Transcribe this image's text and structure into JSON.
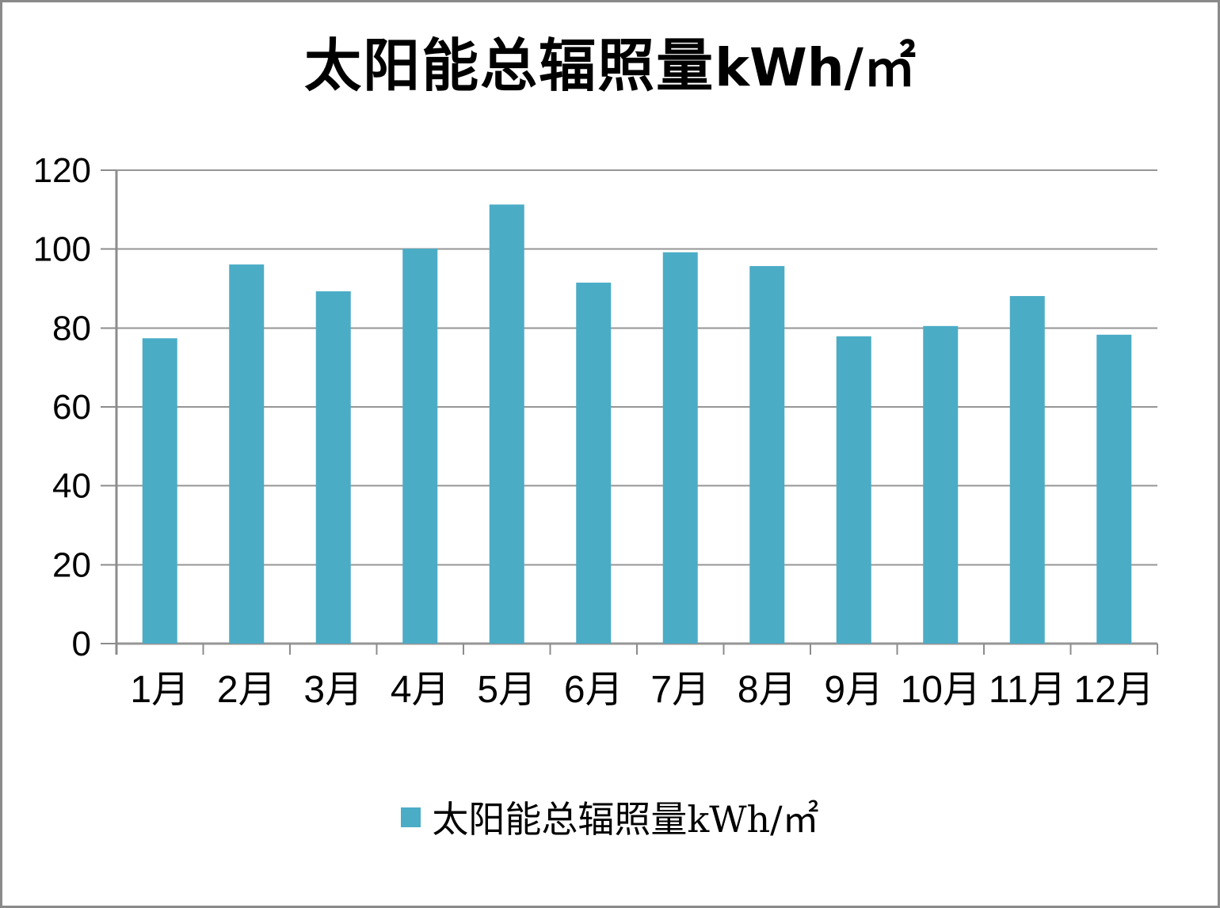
{
  "frame": {
    "background_color": "#ffffff",
    "border_color": "#8a8a8a"
  },
  "title": {
    "cn": "太阳能总辐照量",
    "unit": "kWh/㎡",
    "full": "太阳能总辐照量kWh/㎡"
  },
  "legend": {
    "label": "太阳能总辐照量kWh/㎡",
    "swatch_color": "#4BACC6",
    "position": "bottom-center"
  },
  "chart_data": {
    "type": "bar",
    "title": "太阳能总辐照量kWh/㎡",
    "categories": [
      "1月",
      "2月",
      "3月",
      "4月",
      "5月",
      "6月",
      "7月",
      "8月",
      "9月",
      "10月",
      "11月",
      "12月"
    ],
    "series": [
      {
        "name": "太阳能总辐照量kWh/㎡",
        "values": [
          77.4,
          96.1,
          89.3,
          100.1,
          111.3,
          91.5,
          99.2,
          95.7,
          77.9,
          80.5,
          88.1,
          78.3
        ]
      }
    ],
    "xlabel": "",
    "ylabel": "",
    "ylim": [
      0,
      120
    ],
    "y_ticks": [
      0,
      20,
      40,
      60,
      80,
      100,
      120
    ],
    "grid": "horizontal",
    "legend_position": "bottom",
    "bar_color": "#4BACC6",
    "gridline_color": "#969696",
    "axis_color": "#8c8c8c",
    "tick_label_color": "#000000",
    "y_tick_font_px": 44,
    "x_tick_font_px": 48
  }
}
